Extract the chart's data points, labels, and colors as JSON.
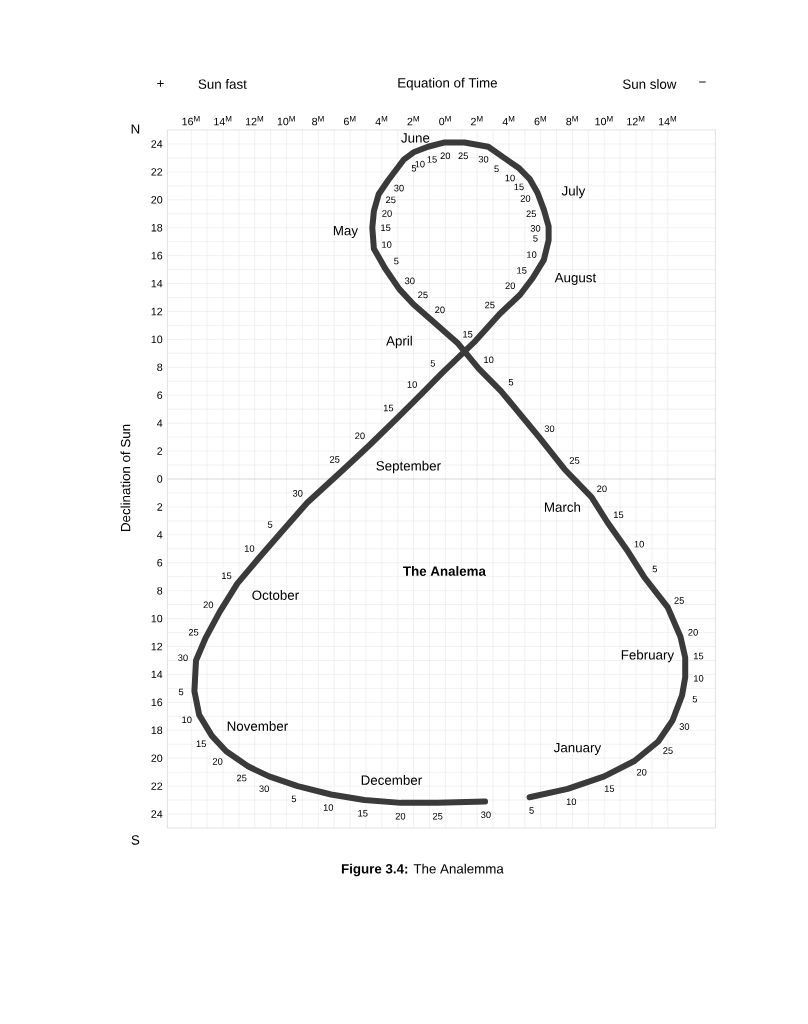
{
  "chart_data": {
    "type": "line",
    "title": "The Analema",
    "xlabel": "Equation of Time",
    "ylabel": "Declination of Sun",
    "color": "#3a3a3a",
    "line_style": "solid",
    "grid": true,
    "xlim": [
      17.5,
      -17
    ],
    "ylim": [
      -25,
      25
    ],
    "xticks": [
      {
        "value": 16,
        "label": "16$^{M}$"
      },
      {
        "value": 14,
        "label": "14$^{M}$"
      },
      {
        "value": 12,
        "label": "12$^{M}$"
      },
      {
        "value": 10,
        "label": "10$^{M}$"
      },
      {
        "value": 8,
        "label": "8$^{M}$"
      },
      {
        "value": 6,
        "label": "6$^{M}$"
      },
      {
        "value": 4,
        "label": "4$^{M}$"
      },
      {
        "value": 2,
        "label": "2$^{M}$"
      },
      {
        "value": 0,
        "label": "0$^{M}$"
      },
      {
        "value": -2,
        "label": "2$^{M}$"
      },
      {
        "value": -4,
        "label": "4$^{M}$"
      },
      {
        "value": -6,
        "label": "6$^{M}$"
      },
      {
        "value": -8,
        "label": "8$^{M}$"
      },
      {
        "value": -10,
        "label": "10$^{M}$"
      },
      {
        "value": -12,
        "label": "12$^{M}$"
      },
      {
        "value": -14,
        "label": "14$^{M}$"
      }
    ],
    "yticks": [
      24,
      22,
      20,
      18,
      16,
      14,
      12,
      10,
      8,
      6,
      4,
      2,
      0,
      {
        "value": -2,
        "label": "2"
      },
      {
        "value": -4,
        "label": "4"
      },
      {
        "value": -6,
        "label": "6"
      },
      {
        "value": -8,
        "label": "8"
      },
      {
        "value": -10,
        "label": "10"
      },
      {
        "value": -12,
        "label": "12"
      },
      {
        "value": -14,
        "label": "14"
      },
      {
        "value": -16,
        "label": "16"
      },
      {
        "value": -18,
        "label": "18"
      },
      {
        "value": -20,
        "label": "20"
      },
      {
        "value": -22,
        "label": "22"
      },
      {
        "value": -24,
        "label": "24"
      }
    ],
    "ref_lines": [
      {
        "axis": "y",
        "value": 0,
        "color": "#c4c4c4"
      }
    ],
    "x": [
      -5.3,
      -7.7,
      -10.0,
      -11.9,
      -13.4,
      -14.3,
      -14.9,
      -15.1,
      -15.1,
      -14.8,
      -14.0,
      -12.5,
      -11.5,
      -10.2,
      -9.2,
      -7.5,
      -5.9,
      -3.5,
      -2.1,
      -0.8,
      0.9,
      2.0,
      2.9,
      3.8,
      4.5,
      4.6,
      4.5,
      4.2,
      3.6,
      2.6,
      2.0,
      1.1,
      0.1,
      -1.2,
      -2.7,
      -3.7,
      -4.6,
      -5.3,
      -5.8,
      -6.2,
      -6.5,
      -6.5,
      -6.2,
      -5.5,
      -4.7,
      -3.4,
      -1.9,
      0.2,
      1.5,
      3.0,
      4.8,
      6.4,
      8.7,
      10.4,
      11.7,
      13.1,
      14.2,
      15.1,
      15.7,
      15.8,
      15.5,
      14.7,
      13.8,
      12.4,
      11.1,
      9.3,
      7.2,
      5.1,
      2.8,
      0.5,
      -2.5
    ],
    "values": [
      -22.8,
      -22.2,
      -21.3,
      -20.2,
      -18.8,
      -17.3,
      -15.5,
      -14.2,
      -12.8,
      -11.3,
      -9.2,
      -7.0,
      -5.2,
      -3.1,
      -1.3,
      0.7,
      3.0,
      6.3,
      7.9,
      9.7,
      11.4,
      12.5,
      13.6,
      15.1,
      16.5,
      18.0,
      19.2,
      20.4,
      21.4,
      22.9,
      23.4,
      23.8,
      24.1,
      24.1,
      23.8,
      23.0,
      22.3,
      21.5,
      20.5,
      19.3,
      18.1,
      17.1,
      15.7,
      14.4,
      13.2,
      11.8,
      9.9,
      7.6,
      6.1,
      4.4,
      2.4,
      0.7,
      -1.7,
      -3.9,
      -5.6,
      -7.5,
      -9.5,
      -11.4,
      -13.0,
      -15.2,
      -16.9,
      -18.4,
      -19.5,
      -20.6,
      -21.3,
      -22.0,
      -22.6,
      -23.0,
      -23.2,
      -23.2,
      -23.1
    ],
    "annotations": [
      "+",
      "Sun fast",
      "Sun slow",
      "−",
      "N",
      "S",
      "January",
      "February",
      "March",
      "April",
      "May",
      "June",
      "July",
      "August",
      "September",
      "October",
      "November",
      "December",
      "**Figure 3.4:** The Analemma",
      {
        "text": "5",
        "x": -5.3,
        "y": -22.8
      },
      {
        "text": "10",
        "x": -7.7,
        "y": -22.2
      },
      {
        "text": "15",
        "x": -10.0,
        "y": -21.3
      },
      {
        "text": "20",
        "x": -11.9,
        "y": -20.2
      },
      {
        "text": "25",
        "x": -13.4,
        "y": -18.8
      },
      {
        "text": "30",
        "x": -14.3,
        "y": -17.3
      },
      {
        "text": "5",
        "x": -14.9,
        "y": -15.5
      },
      {
        "text": "10",
        "x": -15.1,
        "y": -14.2
      },
      {
        "text": "15",
        "x": -15.1,
        "y": -12.8
      },
      {
        "text": "20",
        "x": -14.8,
        "y": -11.3
      },
      {
        "text": "25",
        "x": -14.0,
        "y": -9.2
      },
      {
        "text": "5",
        "x": -12.5,
        "y": -7.0
      },
      {
        "text": "10",
        "x": -11.5,
        "y": -5.2
      },
      {
        "text": "15",
        "x": -10.2,
        "y": -3.1
      },
      {
        "text": "20",
        "x": -9.2,
        "y": -1.3
      },
      {
        "text": "25",
        "x": -7.5,
        "y": 0.7
      },
      {
        "text": "30",
        "x": -5.9,
        "y": 3.0
      },
      {
        "text": "5",
        "x": -3.5,
        "y": 6.3
      },
      {
        "text": "10",
        "x": -2.1,
        "y": 7.9
      },
      {
        "text": "15",
        "x": -0.8,
        "y": 9.7
      },
      {
        "text": "20",
        "x": 0.9,
        "y": 11.4
      },
      {
        "text": "25",
        "x": 2.0,
        "y": 12.5
      },
      {
        "text": "30",
        "x": 2.9,
        "y": 13.6
      },
      {
        "text": "5",
        "x": 3.8,
        "y": 15.1
      },
      {
        "text": "10",
        "x": 4.5,
        "y": 16.5
      },
      {
        "text": "15",
        "x": 4.6,
        "y": 18.0
      },
      {
        "text": "20",
        "x": 4.5,
        "y": 19.2
      },
      {
        "text": "25",
        "x": 4.2,
        "y": 20.4
      },
      {
        "text": "30",
        "x": 3.6,
        "y": 21.4
      },
      {
        "text": "5",
        "x": 2.6,
        "y": 22.9
      },
      {
        "text": "10",
        "x": 2.0,
        "y": 23.4
      },
      {
        "text": "15",
        "x": 1.1,
        "y": 23.8
      },
      {
        "text": "20",
        "x": 0.1,
        "y": 24.1
      },
      {
        "text": "25",
        "x": -1.2,
        "y": 24.1
      },
      {
        "text": "30",
        "x": -2.7,
        "y": 23.8
      },
      {
        "text": "5",
        "x": -3.7,
        "y": 23.0
      },
      {
        "text": "10",
        "x": -4.6,
        "y": 22.3
      },
      {
        "text": "15",
        "x": -5.3,
        "y": 21.5
      },
      {
        "text": "20",
        "x": -5.8,
        "y": 20.5
      },
      {
        "text": "25",
        "x": -6.2,
        "y": 19.3
      },
      {
        "text": "30",
        "x": -6.5,
        "y": 18.1
      },
      {
        "text": "5",
        "x": -6.5,
        "y": 17.1
      },
      {
        "text": "10",
        "x": -6.2,
        "y": 15.7
      },
      {
        "text": "15",
        "x": -5.5,
        "y": 14.4
      },
      {
        "text": "20",
        "x": -4.7,
        "y": 13.2
      },
      {
        "text": "25",
        "x": -3.4,
        "y": 11.8
      },
      {
        "text": "5",
        "x": 0.2,
        "y": 7.6
      },
      {
        "text": "10",
        "x": 1.5,
        "y": 6.1
      },
      {
        "text": "15",
        "x": 3.0,
        "y": 4.4
      },
      {
        "text": "20",
        "x": 4.8,
        "y": 2.4
      },
      {
        "text": "25",
        "x": 6.4,
        "y": 0.7
      },
      {
        "text": "30",
        "x": 8.7,
        "y": -1.7
      },
      {
        "text": "5",
        "x": 10.4,
        "y": -3.9
      },
      {
        "text": "10",
        "x": 11.7,
        "y": -5.6
      },
      {
        "text": "15",
        "x": 13.1,
        "y": -7.5
      },
      {
        "text": "20",
        "x": 14.2,
        "y": -9.5
      },
      {
        "text": "25",
        "x": 15.1,
        "y": -11.4
      },
      {
        "text": "30",
        "x": 15.7,
        "y": -13.0
      },
      {
        "text": "5",
        "x": 15.8,
        "y": -15.2
      },
      {
        "text": "10",
        "x": 15.5,
        "y": -16.9
      },
      {
        "text": "15",
        "x": 14.7,
        "y": -18.4
      },
      {
        "text": "20",
        "x": 13.8,
        "y": -19.5
      },
      {
        "text": "25",
        "x": 12.4,
        "y": -20.6
      },
      {
        "text": "30",
        "x": 11.1,
        "y": -21.3
      },
      {
        "text": "5",
        "x": 9.3,
        "y": -22.0
      },
      {
        "text": "10",
        "x": 7.2,
        "y": -22.6
      },
      {
        "text": "15",
        "x": 5.1,
        "y": -23.0
      },
      {
        "text": "20",
        "x": 2.8,
        "y": -23.2
      },
      {
        "text": "25",
        "x": 0.5,
        "y": -23.2
      },
      {
        "text": "30",
        "x": -2.5,
        "y": -23.1
      }
    ]
  }
}
